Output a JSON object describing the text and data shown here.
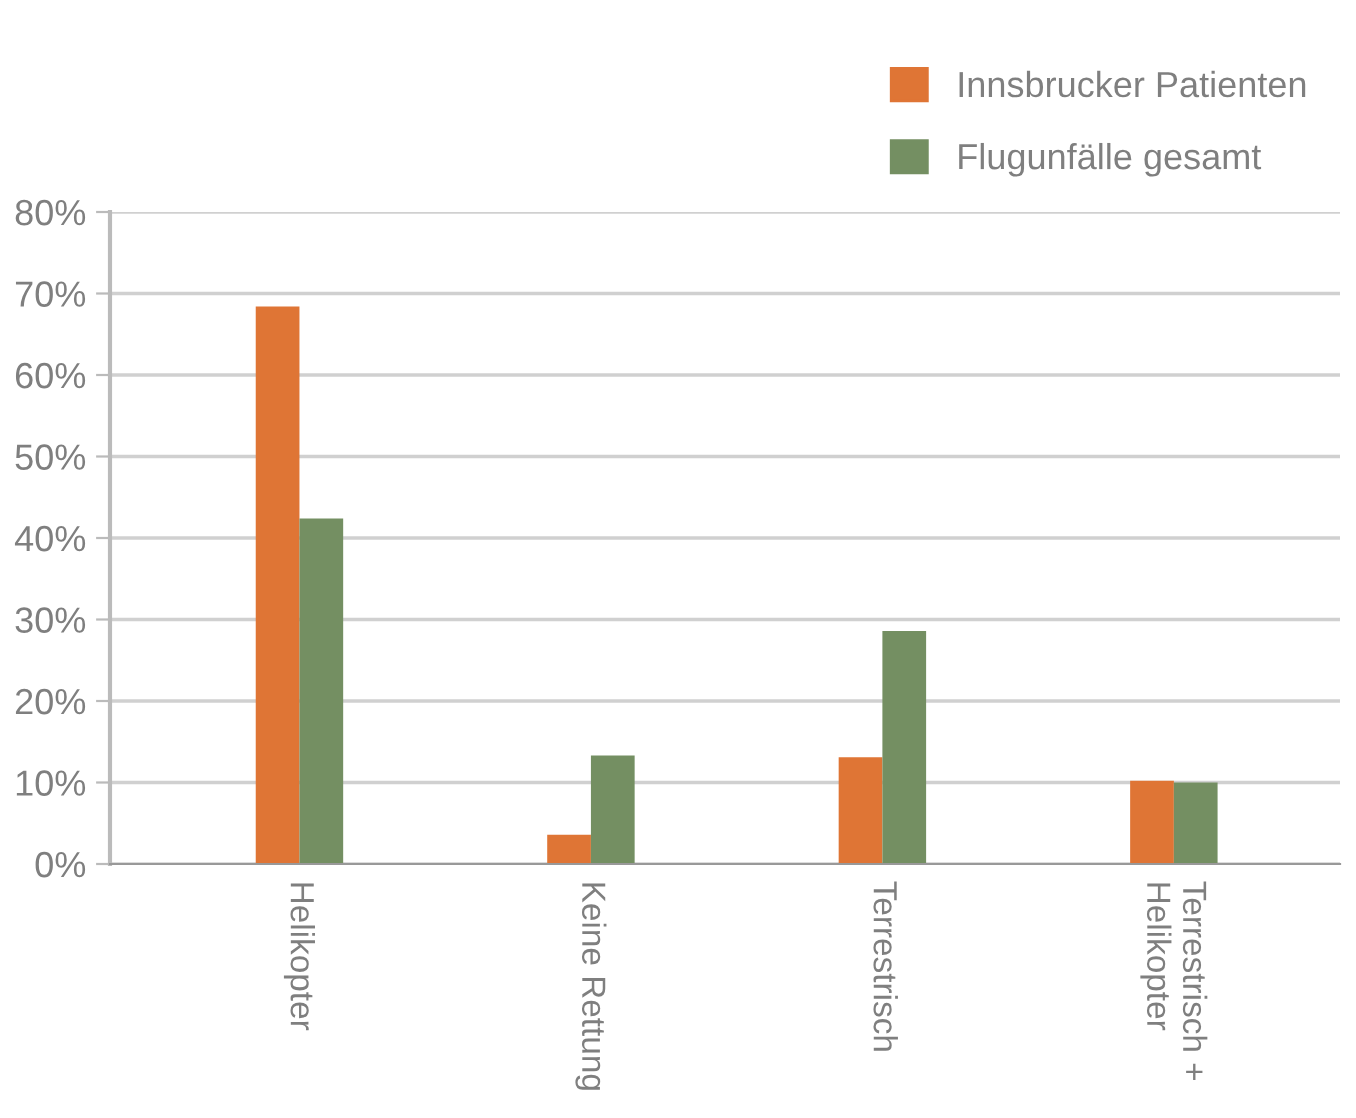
{
  "chart_data": {
    "type": "bar",
    "categories": [
      "Helikopter",
      "Keine Rettung",
      "Terrestrisch",
      "Terrestrisch +\nHelikopter"
    ],
    "series": [
      {
        "name": "Innsbrucker Patienten",
        "color": "#df7535",
        "values": [
          68.4,
          3.6,
          13.1,
          10.2
        ]
      },
      {
        "name": "Flugunfälle gesamt",
        "color": "#748f62",
        "values": [
          42.4,
          13.3,
          28.6,
          10.0
        ]
      }
    ],
    "ylim": [
      0,
      80
    ],
    "yticks": [
      {
        "value": 0,
        "label": "0%"
      },
      {
        "value": 10,
        "label": "10%"
      },
      {
        "value": 20,
        "label": "20%"
      },
      {
        "value": 30,
        "label": "30%"
      },
      {
        "value": 40,
        "label": "40%"
      },
      {
        "value": 50,
        "label": "50%"
      },
      {
        "value": 60,
        "label": "60%"
      },
      {
        "value": 70,
        "label": "70%"
      },
      {
        "value": 80,
        "label": "80%"
      }
    ],
    "grid": "y",
    "legend": "top right"
  }
}
